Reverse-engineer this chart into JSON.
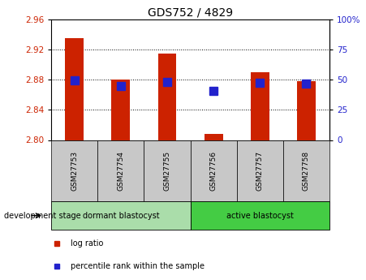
{
  "title": "GDS752 / 4829",
  "samples": [
    "GSM27753",
    "GSM27754",
    "GSM27755",
    "GSM27756",
    "GSM27757",
    "GSM27758"
  ],
  "log_ratio": [
    2.935,
    2.88,
    2.915,
    2.808,
    2.89,
    2.878
  ],
  "percentile_rank_value": [
    2.879,
    2.872,
    2.877,
    2.865,
    2.876,
    2.875
  ],
  "baseline": 2.8,
  "ylim": [
    2.8,
    2.96
  ],
  "yticks_left": [
    2.8,
    2.84,
    2.88,
    2.92,
    2.96
  ],
  "yticks_right_pct": [
    0,
    25,
    50,
    75,
    100
  ],
  "bar_color": "#cc2200",
  "blue_color": "#2222cc",
  "bar_width": 0.4,
  "blue_marker_size": 7,
  "tick_label_color_left": "#cc2200",
  "tick_label_color_right": "#2222cc",
  "sample_bg": "#c8c8c8",
  "group_dormant_color": "#aaddaa",
  "group_active_color": "#44cc44",
  "group_dormant_label": "dormant blastocyst",
  "group_active_label": "active blastocyst",
  "dev_stage_label": "development stage",
  "legend_log_ratio": "log ratio",
  "legend_pct": "percentile rank within the sample"
}
